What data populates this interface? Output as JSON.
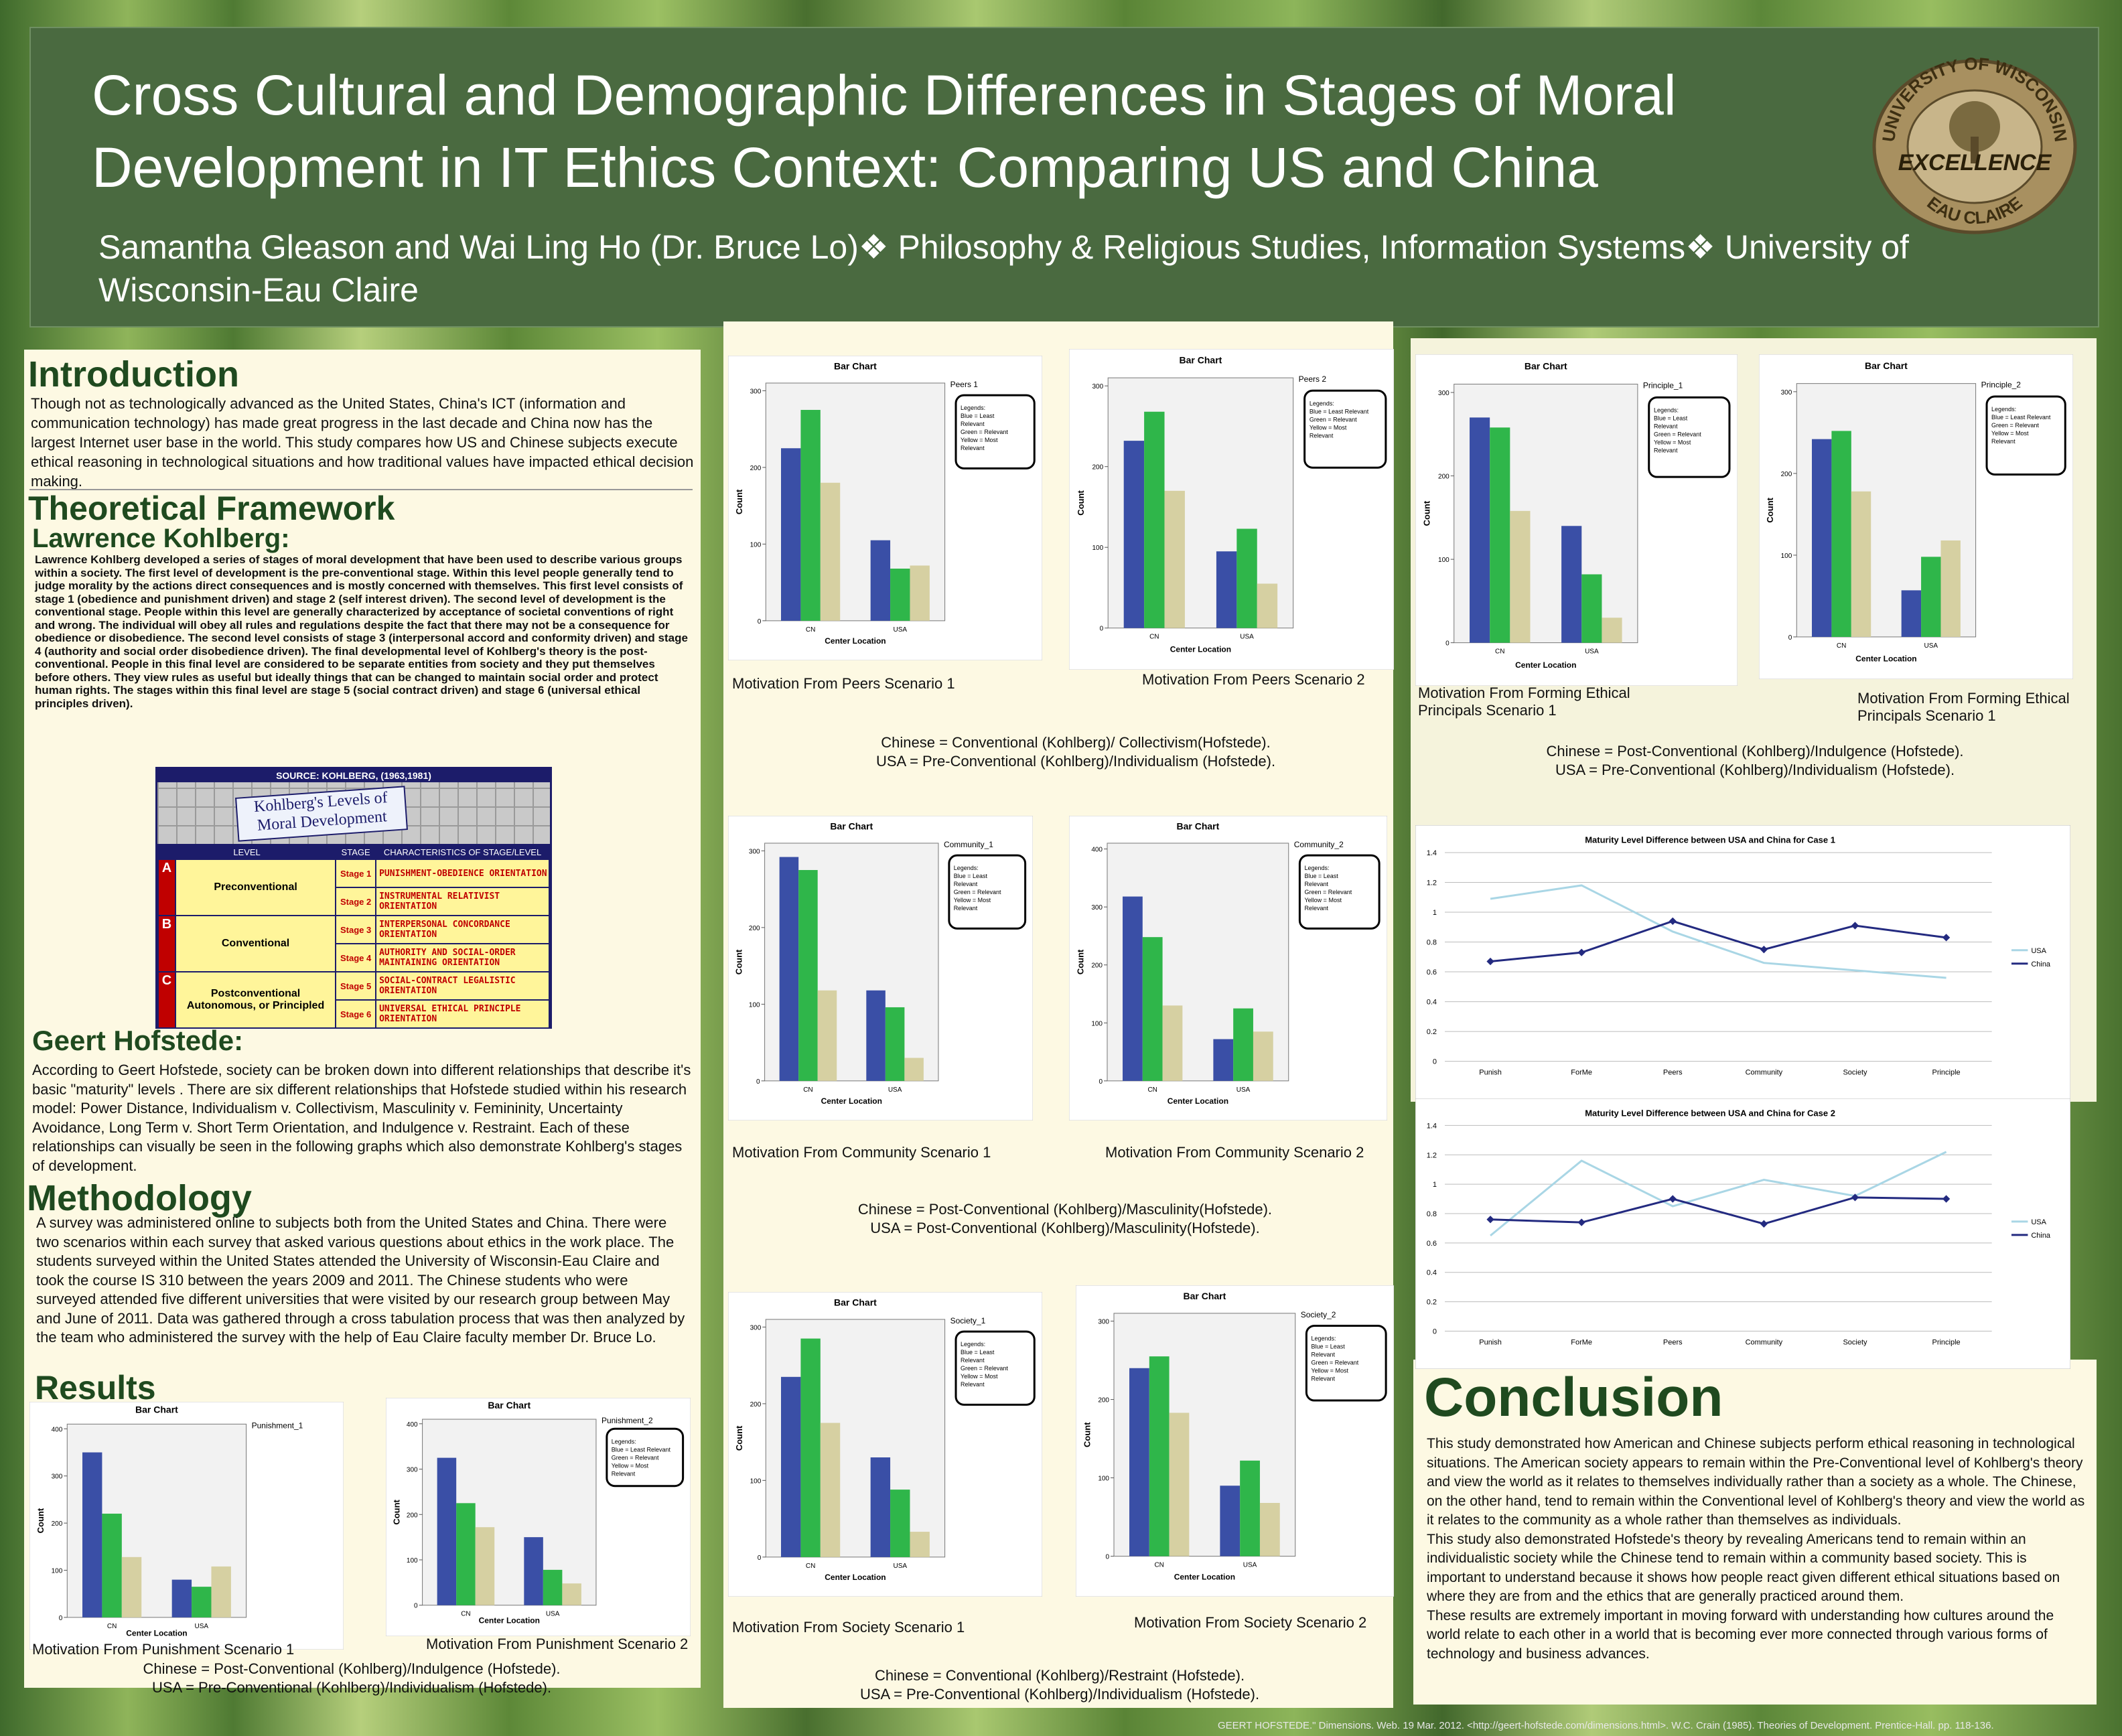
{
  "header": {
    "title": [
      "Cross Cultural and Demographic Differences in Stages of Moral",
      "Development in IT Ethics Context: Comparing US and China"
    ],
    "authors": [
      "Samantha Gleason and Wai Ling Ho (Dr. Bruce Lo)❖ Philosophy & Religious Studies, Information Systems❖ University of",
      "Wisconsin-Eau Claire"
    ],
    "logo": {
      "top": "UNIVERSITY OF WISCONSIN",
      "middle": "EXCELLENCE",
      "bottom": "EAU CLAIRE"
    }
  },
  "introduction": {
    "heading": "Introduction",
    "text": "Though not as technologically advanced as the United States, China's ICT (information and communication technology) has made great progress in the last decade and China now has the largest Internet user base in the world. This study compares how US and Chinese subjects execute ethical reasoning in technological situations and how traditional values have impacted ethical decision making."
  },
  "framework": {
    "heading": "Theoretical Framework",
    "kohlberg_heading": "Lawrence Kohlberg:",
    "kohlberg_text": "Lawrence Kohlberg developed a series of stages of moral development that have been used to describe various groups within a society. The first level of development is the pre-conventional stage. Within this level people generally tend to judge morality by the actions direct consequences and is mostly concerned with themselves. This first level consists of stage 1 (obedience and punishment driven) and stage 2 (self interest driven). The second level of development is the conventional stage. People within this level are generally characterized by acceptance of societal conventions of right and wrong. The individual will obey all rules and regulations despite the fact that there may not be a consequence for obedience or disobedience. The second level consists of stage 3 (interpersonal accord and conformity driven) and stage 4 (authority and social order disobedience driven). The final developmental level of Kohlberg's theory is the post-conventional. People in this final level are considered to be separate entities from society and they put themselves before others. They view rules as useful but ideally things that can be changed to maintain social order and protect human rights. The stages within this final level are stage 5 (social contract driven) and stage 6 (universal ethical principles driven).",
    "hofstede_heading": "Geert Hofstede:",
    "hofstede_text": "According to Geert Hofstede, society can be broken down into different relationships that describe it's basic \"maturity\" levels . There are six different relationships that Hofstede studied within his research model: Power Distance, Individualism v. Collectivism, Masculinity v. Femininity, Uncertainty Avoidance, Long Term v. Short Term Orientation, and Indulgence v. Restraint. Each of these relationships can visually be seen in the following graphs which also demonstrate Kohlberg's stages of development."
  },
  "kohlberg_table": {
    "source": "SOURCE: KOHLBERG, (1963,1981)",
    "title": "Kohlberg's Levels of Moral Development",
    "headers": [
      "LEVEL",
      "STAGE",
      "CHARACTERISTICS OF STAGE/LEVEL"
    ],
    "levels": [
      {
        "letter": "A",
        "name": "Preconventional",
        "stages": [
          {
            "stage": "Stage 1",
            "text": "PUNISHMENT-OBEDIENCE ORIENTATION"
          },
          {
            "stage": "Stage 2",
            "text": "INSTRUMENTAL RELATIVIST ORIENTATION"
          }
        ]
      },
      {
        "letter": "B",
        "name": "Conventional",
        "stages": [
          {
            "stage": "Stage 3",
            "text": "INTERPERSONAL CONCORDANCE ORIENTATION"
          },
          {
            "stage": "Stage 4",
            "text": "AUTHORITY AND SOCIAL-ORDER MAINTAINING ORIENTATION"
          }
        ]
      },
      {
        "letter": "C",
        "name": "Postconventional Autonomous, or Principled",
        "stages": [
          {
            "stage": "Stage 5",
            "text": "SOCIAL-CONTRACT LEGALISTIC ORIENTATION"
          },
          {
            "stage": "Stage 6",
            "text": "UNIVERSAL ETHICAL PRINCIPLE ORIENTATION"
          }
        ]
      }
    ]
  },
  "methodology": {
    "heading": "Methodology",
    "text": "A survey was administered online to subjects both from the United States and China. There were two scenarios within each survey that asked various questions about ethics in the work place. The students surveyed within the United States attended the University of Wisconsin-Eau Claire and took the course IS 310 between the years 2009 and 2011. The Chinese students who were surveyed attended five different universities that were visited by our research group between May and June of 2011. Data was gathered through a cross tabulation process that was then analyzed by the team who administered the survey with the help of Eau Claire faculty member Dr. Bruce Lo."
  },
  "results": {
    "heading": "Results"
  },
  "notes": [
    [
      "Chinese = Conventional (Kohlberg)/ Collectivism(Hofstede).",
      "USA = Pre-Conventional (Kohlberg)/Individualism (Hofstede)."
    ],
    [
      "Chinese = Post-Conventional (Kohlberg)/Indulgence (Hofstede).",
      "USA = Pre-Conventional (Kohlberg)/Individualism (Hofstede)."
    ],
    [
      "Chinese = Post-Conventional (Kohlberg)/Masculinity(Hofstede).",
      "USA = Post-Conventional (Kohlberg)/Masculinity(Hofstede)."
    ],
    [
      "Chinese = Conventional (Kohlberg)/Restraint (Hofstede).",
      "USA = Pre-Conventional (Kohlberg)/Individualism (Hofstede)."
    ],
    [
      "Chinese = Post-Conventional (Kohlberg)/Indulgence (Hofstede).",
      "USA = Pre-Conventional (Kohlberg)/Individualism (Hofstede)."
    ]
  ],
  "conclusion": {
    "heading": "Conclusion",
    "paragraphs": [
      "This study demonstrated how American and Chinese subjects perform ethical reasoning in technological situations.  The American society appears to remain within the Pre-Conventional level of Kohlberg's theory and view the world as it relates to themselves individually rather than a society as a whole. The Chinese, on the other hand, tend to remain within the Conventional level of Kohlberg's theory and view the world as it relates to the community as a whole rather than themselves as individuals.",
      "This study also demonstrated Hofstede's theory by revealing  Americans tend to remain within an individualistic society while the Chinese tend to remain within a community based society. This is important to understand because it shows how people react given different ethical situations based on where they are from and the ethics that are generally practiced around them.",
      "These results are extremely important in moving forward  with understanding how cultures around the world relate to each other in a world that is becoming ever more connected through various forms of technology and business advances."
    ]
  },
  "footer": "GEERT HOFSTEDE.\" Dimensions. Web. 19 Mar. 2012. <http://geert-hofstede.com/dimensions.html>. W.C. Crain (1985). Theories of Development. Prentice-Hall. pp. 118-136.",
  "chart_data": [
    {
      "type": "bar",
      "title": "Bar Chart",
      "caption": "Motivation From Peers Scenario 1",
      "legend_title": "Peers 1",
      "legend_lines": [
        "Legends:",
        "Blue = Least",
        "Relevant",
        "Green = Relevant",
        "Yellow = Most",
        "Relevant"
      ],
      "ylabel": "Count",
      "xlabel": "Center Location",
      "categories": [
        "CN",
        "USA"
      ],
      "ylim": [
        0,
        310
      ],
      "yticks": [
        0,
        100,
        200,
        300
      ],
      "series": [
        {
          "color": "#3a4fa6",
          "values": [
            225,
            105
          ]
        },
        {
          "color": "#2fb64a",
          "values": [
            275,
            68
          ]
        },
        {
          "color": "#d6d0a2",
          "values": [
            180,
            72
          ]
        }
      ]
    },
    {
      "type": "bar",
      "title": "Bar Chart",
      "caption": "Motivation From Peers Scenario 2",
      "legend_title": "Peers 2",
      "legend_lines": [
        "Legends:",
        "Blue = Least Relevant",
        "Green = Relevant",
        "Yellow = Most",
        "Relevant"
      ],
      "ylabel": "Count",
      "xlabel": "Center Location",
      "categories": [
        "CN",
        "USA"
      ],
      "ylim": [
        0,
        310
      ],
      "yticks": [
        0,
        100,
        200,
        300
      ],
      "series": [
        {
          "color": "#3a4fa6",
          "values": [
            232,
            95
          ]
        },
        {
          "color": "#2fb64a",
          "values": [
            268,
            123
          ]
        },
        {
          "color": "#d6d0a2",
          "values": [
            170,
            55
          ]
        }
      ]
    },
    {
      "type": "bar",
      "title": "Bar Chart",
      "caption": "Motivation From Forming Ethical Principals Scenario 1",
      "legend_title": "Principle_1",
      "legend_lines": [
        "Legends:",
        "Blue = Least",
        "Relevant",
        "Green = Relevant",
        "Yellow = Most",
        "Relevant"
      ],
      "ylabel": "Count",
      "xlabel": "Center Location",
      "categories": [
        "CN",
        "USA"
      ],
      "ylim": [
        0,
        310
      ],
      "yticks": [
        0,
        100,
        200,
        300
      ],
      "series": [
        {
          "color": "#3a4fa6",
          "values": [
            270,
            140
          ]
        },
        {
          "color": "#2fb64a",
          "values": [
            258,
            82
          ]
        },
        {
          "color": "#d6d0a2",
          "values": [
            158,
            30
          ]
        }
      ]
    },
    {
      "type": "bar",
      "title": "Bar Chart",
      "caption": "Motivation From Forming Ethical Principals Scenario 1",
      "legend_title": "Principle_2",
      "legend_lines": [
        "Legends:",
        "Blue = Least Relevant",
        "Green = Relevant",
        "Yellow = Most",
        "Relevant"
      ],
      "ylabel": "Count",
      "xlabel": "Center Location",
      "categories": [
        "CN",
        "USA"
      ],
      "ylim": [
        0,
        310
      ],
      "yticks": [
        0,
        100,
        200,
        300
      ],
      "series": [
        {
          "color": "#3a4fa6",
          "values": [
            242,
            57
          ]
        },
        {
          "color": "#2fb64a",
          "values": [
            252,
            98
          ]
        },
        {
          "color": "#d6d0a2",
          "values": [
            178,
            118
          ]
        }
      ]
    },
    {
      "type": "bar",
      "title": "Bar Chart",
      "caption": "Motivation From Community Scenario 1",
      "legend_title": "Community_1",
      "legend_lines": [
        "Legends:",
        "Blue = Least",
        "Relevant",
        "Green = Relevant",
        "Yellow = Most",
        "Relevant"
      ],
      "ylabel": "Count",
      "xlabel": "Center Location",
      "categories": [
        "CN",
        "USA"
      ],
      "ylim": [
        0,
        310
      ],
      "yticks": [
        0,
        100,
        200,
        300
      ],
      "series": [
        {
          "color": "#3a4fa6",
          "values": [
            292,
            118
          ]
        },
        {
          "color": "#2fb64a",
          "values": [
            275,
            96
          ]
        },
        {
          "color": "#d6d0a2",
          "values": [
            118,
            30
          ]
        }
      ]
    },
    {
      "type": "bar",
      "title": "Bar Chart",
      "caption": "Motivation From Community Scenario 2",
      "legend_title": "Community_2",
      "legend_lines": [
        "Legends:",
        "Blue = Least",
        "Relevant",
        "Green = Relevant",
        "Yellow = Most",
        "Relevant"
      ],
      "ylabel": "Count",
      "xlabel": "Center Location",
      "categories": [
        "CN",
        "USA"
      ],
      "ylim": [
        0,
        410
      ],
      "yticks": [
        0,
        100,
        200,
        300,
        400
      ],
      "series": [
        {
          "color": "#3a4fa6",
          "values": [
            318,
            72
          ]
        },
        {
          "color": "#2fb64a",
          "values": [
            248,
            125
          ]
        },
        {
          "color": "#d6d0a2",
          "values": [
            130,
            85
          ]
        }
      ]
    },
    {
      "type": "bar",
      "title": "Bar Chart",
      "caption": "Motivation From Society Scenario 1",
      "legend_title": "Society_1",
      "legend_lines": [
        "Legends:",
        "Blue = Least",
        "Relevant",
        "Green = Relevant",
        "Yellow = Most",
        "Relevant"
      ],
      "ylabel": "Count",
      "xlabel": "Center Location",
      "categories": [
        "CN",
        "USA"
      ],
      "ylim": [
        0,
        310
      ],
      "yticks": [
        0,
        100,
        200,
        300
      ],
      "series": [
        {
          "color": "#3a4fa6",
          "values": [
            235,
            130
          ]
        },
        {
          "color": "#2fb64a",
          "values": [
            285,
            88
          ]
        },
        {
          "color": "#d6d0a2",
          "values": [
            175,
            33
          ]
        }
      ]
    },
    {
      "type": "bar",
      "title": "Bar Chart",
      "caption": "Motivation From Society Scenario 2",
      "legend_title": "Society_2",
      "legend_lines": [
        "Legends:",
        "Blue = Least",
        "Relevant",
        "Green = Relevant",
        "Yellow = Most",
        "Relevant"
      ],
      "ylabel": "Count",
      "xlabel": "Center Location",
      "categories": [
        "CN",
        "USA"
      ],
      "ylim": [
        0,
        310
      ],
      "yticks": [
        0,
        100,
        200,
        300
      ],
      "series": [
        {
          "color": "#3a4fa6",
          "values": [
            240,
            90
          ]
        },
        {
          "color": "#2fb64a",
          "values": [
            255,
            122
          ]
        },
        {
          "color": "#d6d0a2",
          "values": [
            183,
            68
          ]
        }
      ]
    },
    {
      "type": "bar",
      "title": "Bar Chart",
      "caption": "Motivation From Punishment Scenario 1",
      "legend_title": "Punishment_1",
      "legend_lines": [],
      "ylabel": "Count",
      "xlabel": "Center Location",
      "categories": [
        "CN",
        "USA"
      ],
      "ylim": [
        0,
        410
      ],
      "yticks": [
        0,
        100,
        200,
        300,
        400
      ],
      "series": [
        {
          "color": "#3a4fa6",
          "values": [
            350,
            80
          ]
        },
        {
          "color": "#2fb64a",
          "values": [
            220,
            65
          ]
        },
        {
          "color": "#d6d0a2",
          "values": [
            128,
            108
          ]
        }
      ]
    },
    {
      "type": "bar",
      "title": "Bar Chart",
      "caption": "Motivation From Punishment Scenario 2",
      "legend_title": "Punishment_2",
      "legend_lines": [
        "Legends:",
        "Blue = Least Relevant",
        "Green = Relevant",
        "Yellow = Most",
        "Relevant"
      ],
      "ylabel": "Count",
      "xlabel": "Center Location",
      "categories": [
        "CN",
        "USA"
      ],
      "ylim": [
        0,
        410
      ],
      "yticks": [
        0,
        100,
        200,
        300,
        400
      ],
      "series": [
        {
          "color": "#3a4fa6",
          "values": [
            325,
            150
          ]
        },
        {
          "color": "#2fb64a",
          "values": [
            225,
            78
          ]
        },
        {
          "color": "#d6d0a2",
          "values": [
            172,
            48
          ]
        }
      ]
    },
    {
      "type": "line",
      "title": "Maturity Level Difference between USA and China for Case 1",
      "categories": [
        "Punish",
        "ForMe",
        "Peers",
        "Community",
        "Society",
        "Principle"
      ],
      "ylim": [
        0,
        1.4
      ],
      "yticks": [
        0,
        0.2,
        0.4,
        0.6,
        0.8,
        1,
        1.2,
        1.4
      ],
      "grid": true,
      "legend": "right",
      "series": [
        {
          "name": "USA",
          "color": "#a9d6e5",
          "values": [
            1.09,
            1.18,
            0.87,
            0.66,
            0.61,
            0.56
          ]
        },
        {
          "name": "China",
          "color": "#232a80",
          "values": [
            0.67,
            0.73,
            0.94,
            0.75,
            0.91,
            0.83
          ]
        }
      ]
    },
    {
      "type": "line",
      "title": "Maturity Level Difference between USA and China for Case 2",
      "categories": [
        "Punish",
        "ForMe",
        "Peers",
        "Community",
        "Society",
        "Principle"
      ],
      "ylim": [
        0,
        1.4
      ],
      "yticks": [
        0,
        0.2,
        0.4,
        0.6,
        0.8,
        1,
        1.2,
        1.4
      ],
      "grid": true,
      "legend": "right",
      "series": [
        {
          "name": "USA",
          "color": "#a9d6e5",
          "values": [
            0.65,
            1.16,
            0.85,
            1.03,
            0.92,
            1.22
          ]
        },
        {
          "name": "China",
          "color": "#232a80",
          "values": [
            0.76,
            0.74,
            0.9,
            0.73,
            0.91,
            0.9
          ]
        }
      ]
    }
  ]
}
